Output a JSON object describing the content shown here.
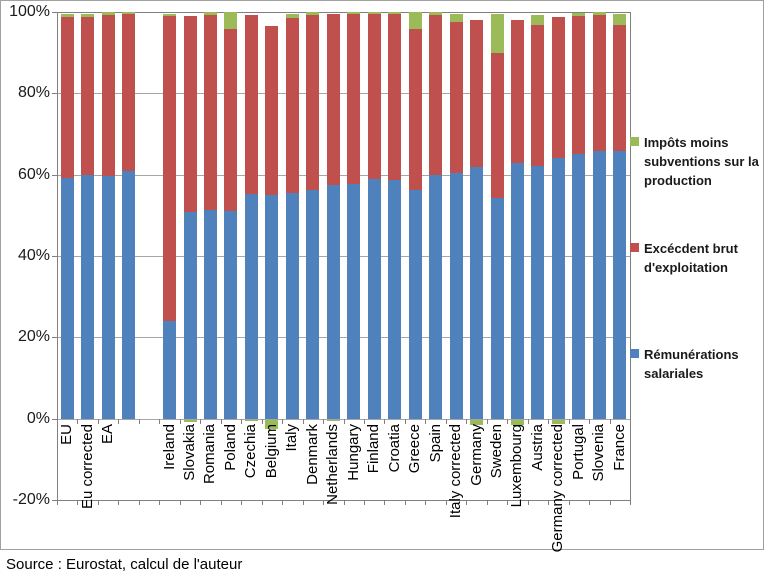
{
  "source_note": "Source : Eurostat, calcul de l'auteur",
  "colors": {
    "blue": "#4F81BD",
    "red": "#C0504D",
    "green": "#9BBB59",
    "gridline": "#A6A6A6",
    "axis": "#808080",
    "frame": "#A0A0A0",
    "text": "#000000"
  },
  "chart_data": {
    "type": "bar",
    "stacked": true,
    "title": "",
    "xlabel": "",
    "ylabel": "",
    "ylim": [
      -20,
      100
    ],
    "ytick_labels": [
      "100%",
      "80%",
      "60%",
      "40%",
      "20%",
      "0%",
      "-20%"
    ],
    "ytick_values": [
      100,
      80,
      60,
      40,
      20,
      0,
      -20
    ],
    "grid": true,
    "legend_position": "right",
    "categories": [
      "EU",
      "Eu corrected",
      "EA",
      "",
      "",
      "Ireland",
      "Slovakia",
      "Romania",
      "Poland",
      "Czechia",
      "Belgium",
      "Italy",
      "Denmark",
      "Netherlands",
      "Hungary",
      "Finland",
      "Croatia",
      "Greece",
      "Spain",
      "Italy corrected",
      "Germany",
      "Sweden",
      "Luxembourg",
      "Austria",
      "Germany corrected",
      "Portugal",
      "Slovenia",
      "France"
    ],
    "series": [
      {
        "name": "Rémunérations salariales",
        "color": "#4F81BD",
        "values": [
          59.3,
          60.0,
          59.6,
          61.0,
          null,
          24.0,
          50.7,
          51.3,
          51.0,
          55.2,
          55.0,
          55.4,
          56.2,
          57.4,
          57.7,
          59.0,
          58.8,
          56.3,
          59.8,
          60.5,
          61.8,
          54.2,
          62.8,
          62.1,
          64.2,
          65.1,
          65.9,
          65.7
        ]
      },
      {
        "name": "Excécdent brut d'exploitation",
        "color": "#C0504D",
        "values": [
          39.4,
          38.8,
          39.7,
          38.5,
          null,
          75.0,
          48.2,
          48.0,
          44.9,
          44.1,
          41.6,
          43.2,
          43.0,
          42.1,
          41.9,
          40.5,
          40.7,
          39.6,
          39.4,
          37.1,
          36.2,
          35.7,
          35.2,
          34.8,
          34.6,
          33.9,
          33.3,
          31.2
        ]
      },
      {
        "name": "Impôts moins subventions sur la production",
        "color": "#9BBB59",
        "values": [
          0.7,
          0.7,
          0.6,
          0.5,
          null,
          0.6,
          -0.5,
          0.7,
          4.0,
          -0.3,
          -2.2,
          1.0,
          0.8,
          -0.4,
          0.4,
          0.5,
          0.5,
          4.0,
          0.8,
          1.9,
          -1.2,
          9.7,
          -1.3,
          2.3,
          -1.0,
          0.8,
          0.7,
          2.6
        ]
      }
    ],
    "legend_order": [
      2,
      1,
      0
    ],
    "legend_item_tops": [
      133,
      239,
      345
    ]
  }
}
